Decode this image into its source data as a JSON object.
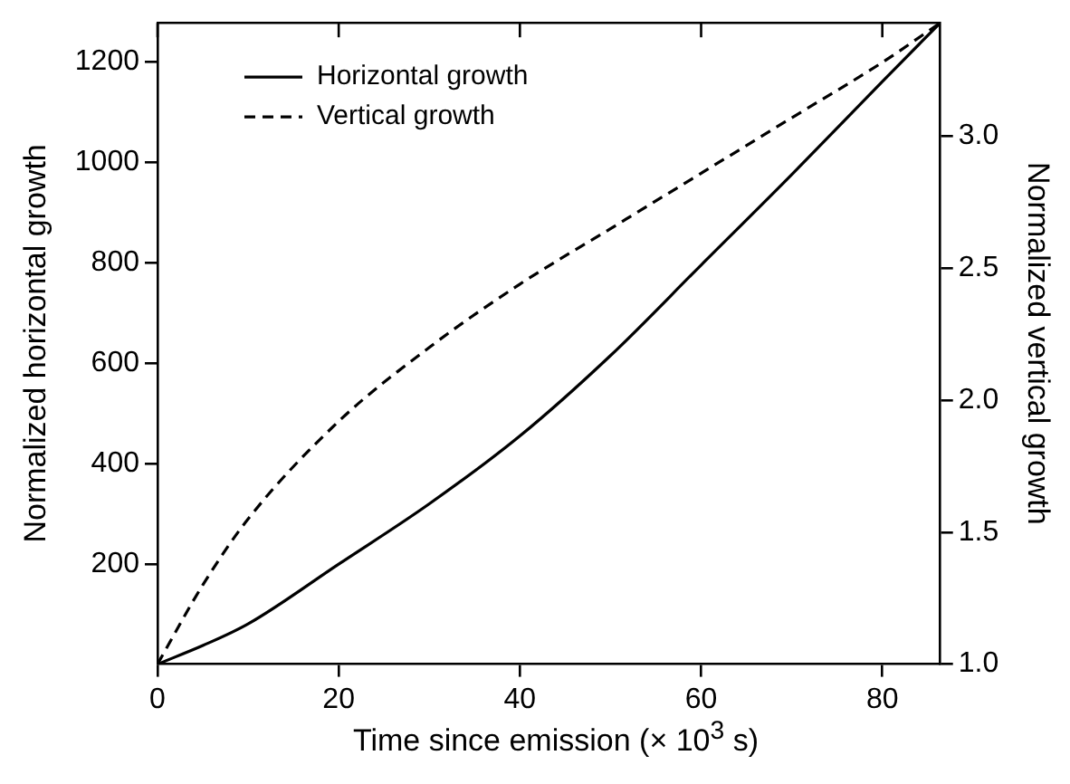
{
  "chart_data": {
    "type": "line",
    "xlabel": "Time since emission (× 10$^{3}$ s)",
    "ylabel": "Normalized horizontal growth",
    "y2label": "Normalized vertical growth",
    "x": [
      0,
      5,
      10,
      20,
      30,
      40,
      50,
      60,
      70,
      80,
      86.4
    ],
    "series": [
      {
        "name": "Horizontal growth",
        "color": "#000000",
        "line_style": "solid",
        "values": [
          1,
          38,
          81,
          200,
          320,
          455,
          615,
          795,
          975,
          1160,
          1277
        ]
      },
      {
        "name": "Vertical growth",
        "color": "#000000",
        "line_style": "dashed",
        "axis": "y2",
        "values": [
          1,
          1.3,
          1.55,
          1.92,
          2.2,
          2.44,
          2.65,
          2.86,
          3.07,
          3.28,
          3.43
        ]
      }
    ],
    "xlim": [
      0,
      86.4
    ],
    "xticks": [
      0,
      20,
      40,
      60,
      80
    ],
    "ylim": [
      1,
      1277
    ],
    "yticks": [
      200,
      400,
      600,
      800,
      1000,
      1200
    ],
    "y2lim": [
      1,
      3.43
    ],
    "y2ticks": [
      {
        "value": 1,
        "label": "1.0"
      },
      {
        "value": 1.5,
        "label": "1.5"
      },
      {
        "value": 2,
        "label": "2.0"
      },
      {
        "value": 2.5,
        "label": "2.5"
      },
      {
        "value": 3,
        "label": "3.0"
      }
    ],
    "legend": "top left",
    "marker": "none",
    "grid": false
  }
}
